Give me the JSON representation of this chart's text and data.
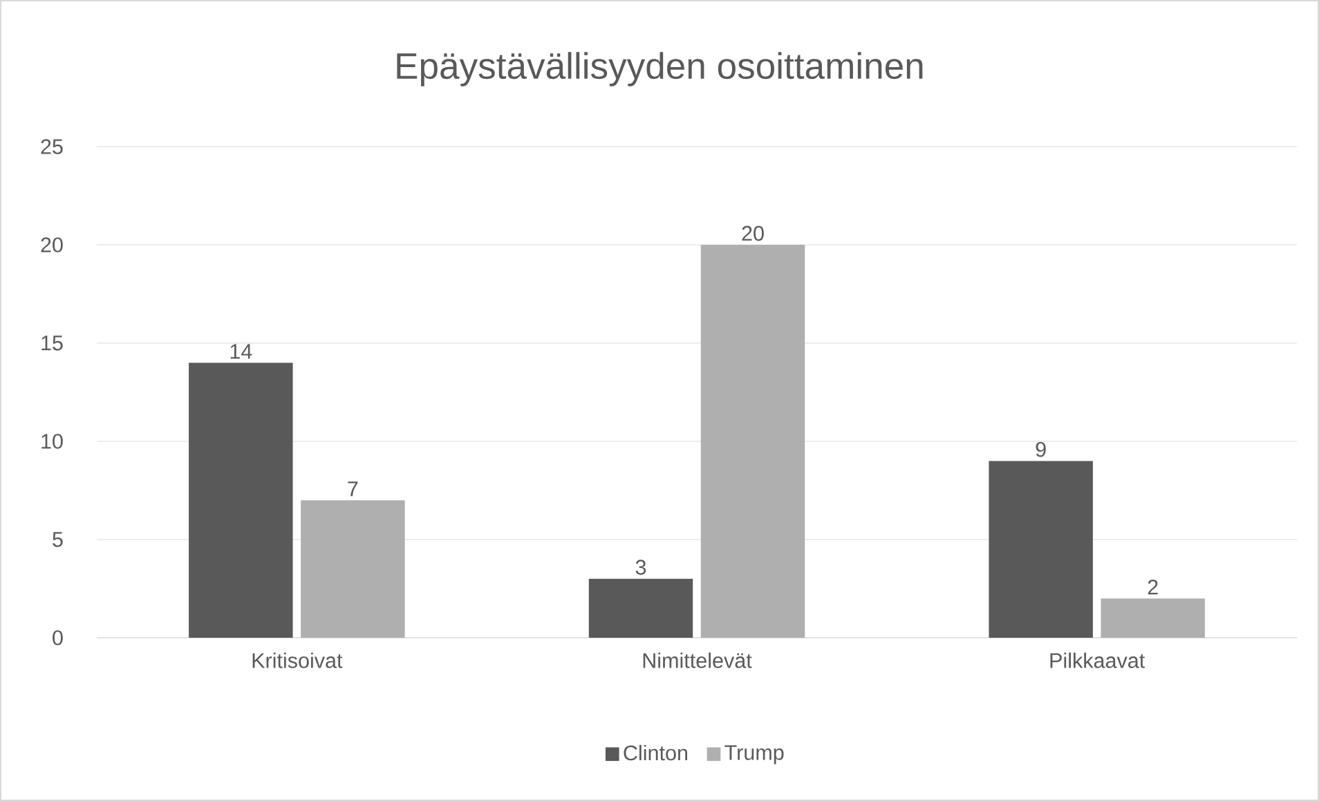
{
  "chart_data": {
    "type": "bar",
    "title": "Epäystävällisyyden osoittaminen",
    "categories": [
      "Kritisoivat",
      "Nimittelevät",
      "Pilkkaavat"
    ],
    "series": [
      {
        "name": "Clinton",
        "color": "#595959",
        "values": [
          14,
          3,
          9
        ]
      },
      {
        "name": "Trump",
        "color": "#afafaf",
        "values": [
          7,
          20,
          2
        ]
      }
    ],
    "ylim": [
      0,
      25
    ],
    "yticks": [
      0,
      5,
      10,
      15,
      20,
      25
    ],
    "grid": "y",
    "legend": "bottom",
    "data_labels": true
  }
}
